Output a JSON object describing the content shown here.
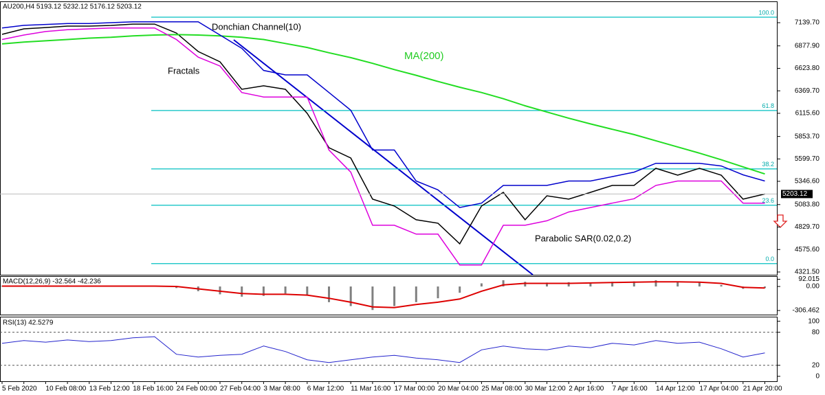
{
  "chart_data": [
    {
      "type": "line",
      "title": "AU200,H4  5193.12 5232.12 5176.12 5203.12",
      "categories": [
        "5 Feb 2020",
        null,
        "10 Feb 08:00",
        null,
        "13 Feb 12:00",
        null,
        "18 Feb 16:00",
        null,
        "24 Feb 00:00",
        null,
        "27 Feb 04:00",
        null,
        "3 Mar 08:00",
        null,
        "6 Mar 12:00",
        null,
        "11 Mar 16:00",
        null,
        "17 Mar 00:00",
        null,
        "20 Mar 04:00",
        null,
        "25 Mar 08:00",
        null,
        "30 Mar 12:00",
        null,
        "2 Apr 16:00",
        null,
        "7 Apr 16:00",
        null,
        "14 Apr 12:00",
        null,
        "17 Apr 04:00",
        null,
        "21 Apr 20:00",
        null
      ],
      "series": [
        {
          "name": "AU200",
          "color": "#000000",
          "values": [
            7008,
            7070,
            7085,
            7101,
            7101,
            7109,
            7124,
            7124,
            7023,
            6814,
            6697,
            6387,
            6426,
            6387,
            6115,
            5727,
            5610,
            5145,
            5067,
            4912,
            4873,
            4640,
            5067,
            5222,
            4912,
            5183,
            5145,
            5222,
            5300,
            5300,
            5494,
            5416,
            5494,
            5416,
            5145,
            5203
          ]
        },
        {
          "name": "MA(200)",
          "color": "#22dd22",
          "values": [
            6900,
            6920,
            6935,
            6950,
            6965,
            6975,
            6990,
            7000,
            7005,
            7000,
            6990,
            6975,
            6950,
            6905,
            6860,
            6800,
            6745,
            6680,
            6610,
            6545,
            6475,
            6410,
            6350,
            6280,
            6200,
            6130,
            6060,
            5995,
            5935,
            5875,
            5805,
            5735,
            5665,
            5590,
            5510,
            5430
          ]
        },
        {
          "name": "Donchian Channel(10)",
          "color": "#0000cc",
          "values": [
            7080,
            7110,
            7120,
            7130,
            7130,
            7140,
            7150,
            7150,
            7150,
            7150,
            7000,
            6850,
            6600,
            6550,
            6550,
            6350,
            6150,
            5700,
            5700,
            5350,
            5250,
            5050,
            5100,
            5300,
            5300,
            5300,
            5350,
            5350,
            5400,
            5450,
            5550,
            5550,
            5550,
            5520,
            5420,
            5350
          ]
        },
        {
          "name": "Donchian Channel(10)",
          "color": "#dd00dd",
          "values": [
            6950,
            7000,
            7040,
            7060,
            7070,
            7080,
            7080,
            7080,
            6950,
            6750,
            6650,
            6350,
            6300,
            6300,
            6300,
            5700,
            5450,
            4850,
            4850,
            4750,
            4750,
            4400,
            4400,
            4850,
            4850,
            4900,
            5000,
            5050,
            5100,
            5150,
            5300,
            5350,
            5350,
            5350,
            5100,
            5100
          ]
        }
      ],
      "ylim": [
        4290,
        7373
      ],
      "yticks": [
        {
          "value": 7139.7,
          "label": "7139.70"
        },
        {
          "value": 6877.9,
          "label": "6877.90"
        },
        {
          "value": 6623.8,
          "label": "6623.80"
        },
        {
          "value": 6369.7,
          "label": "6369.70"
        },
        {
          "value": 6115.6,
          "label": "6115.60"
        },
        {
          "value": 5853.7,
          "label": "5853.70"
        },
        {
          "value": 5599.7,
          "label": "5599.70"
        },
        {
          "value": 5346.6,
          "label": "5346.60"
        },
        {
          "value": 5083.8,
          "label": "5083.80"
        },
        {
          "value": 4829.7,
          "label": "4829.70"
        },
        {
          "value": 4575.6,
          "label": "4575.60"
        },
        {
          "value": 4321.5,
          "label": "4321.50"
        }
      ],
      "current_price": 5203.12,
      "fib_levels": [
        {
          "value": 7202,
          "label": "100.0"
        },
        {
          "value": 6147,
          "label": "61.8"
        },
        {
          "value": 5487,
          "label": "38.2"
        },
        {
          "value": 5076,
          "label": "23.6"
        },
        {
          "value": 4416,
          "label": "0.0"
        }
      ],
      "annotations": [
        "Donchian Channel(10)",
        "Fractals",
        "MA(200)",
        "Parabolic SAR(0.02,0.2)"
      ]
    },
    {
      "type": "bar",
      "title": "MACD(12,26,9) -32.564 -42.236",
      "values": [
        10,
        12,
        15,
        15,
        12,
        10,
        8,
        5,
        -20,
        -60,
        -100,
        -130,
        -120,
        -90,
        -110,
        -200,
        -250,
        -300,
        -250,
        -200,
        -150,
        -80,
        40,
        80,
        60,
        50,
        55,
        50,
        60,
        65,
        80,
        60,
        50,
        20,
        -30,
        -20
      ],
      "signal": [
        5,
        5,
        5,
        5,
        5,
        5,
        5,
        5,
        0,
        -30,
        -60,
        -90,
        -100,
        -100,
        -110,
        -150,
        -200,
        -260,
        -270,
        -230,
        -200,
        -160,
        -60,
        20,
        40,
        40,
        40,
        45,
        50,
        55,
        60,
        60,
        55,
        40,
        -10,
        -20
      ],
      "color": "#808080",
      "signal_color": "#dd0000",
      "ylim": [
        -359,
        123
      ],
      "yticks": [
        92.015,
        {
          "value": 0,
          "label": "0.00"
        },
        -306.462
      ]
    },
    {
      "type": "line",
      "title": "RSI(13) 42.5279",
      "values": [
        60,
        65,
        62,
        66,
        63,
        65,
        70,
        72,
        40,
        35,
        38,
        40,
        55,
        45,
        30,
        25,
        30,
        35,
        38,
        33,
        30,
        25,
        48,
        55,
        50,
        48,
        55,
        52,
        60,
        57,
        65,
        60,
        62,
        50,
        35,
        42.5
      ],
      "color": "#2222cc",
      "ylim": [
        -9,
        107
      ],
      "yticks": [
        100,
        80,
        20,
        0
      ],
      "grid_levels": [
        80,
        20
      ]
    }
  ]
}
